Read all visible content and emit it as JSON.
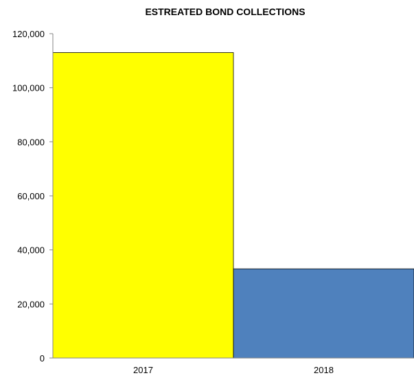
{
  "chart_data": {
    "type": "bar",
    "title": "ESTREATED BOND COLLECTIONS",
    "categories": [
      "2017",
      "2018"
    ],
    "values": [
      113000,
      33000
    ],
    "colors": [
      "#ffff00",
      "#4f81bd"
    ],
    "xlabel": "",
    "ylabel": "",
    "ylim": [
      0,
      120000
    ],
    "yticks": [
      0,
      20000,
      40000,
      60000,
      80000,
      100000,
      120000
    ],
    "ytick_labels": [
      "0",
      "20,000",
      "40,000",
      "60,000",
      "80,000",
      "100,000",
      "120,000"
    ],
    "grid": false,
    "legend": "none"
  }
}
